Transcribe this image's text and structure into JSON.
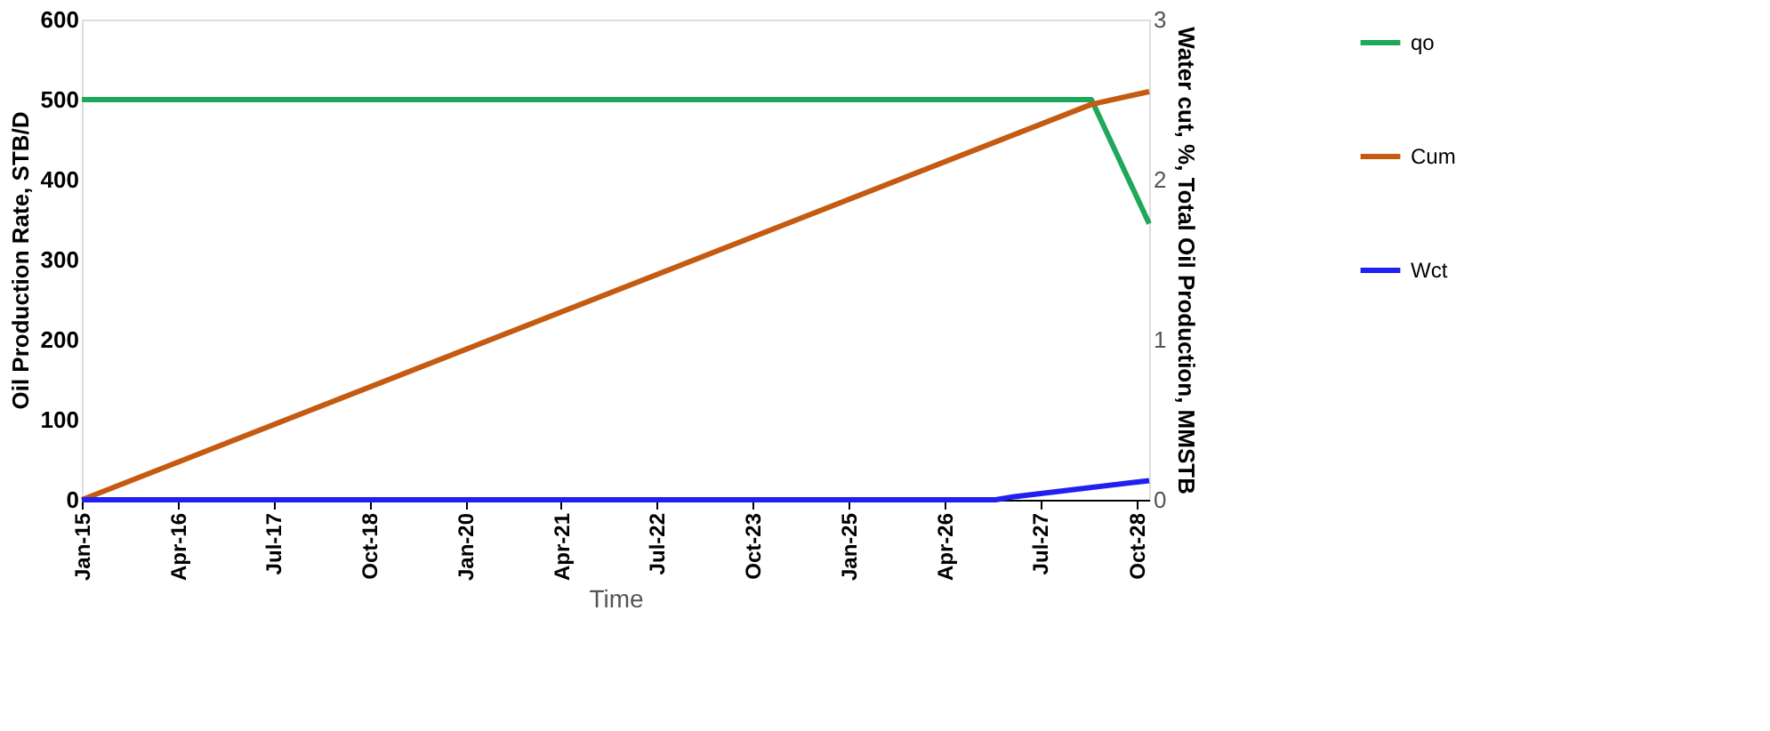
{
  "chart_data": {
    "type": "line",
    "xlabel": "Time",
    "ylabel": "Oil Production Rate, STB/D",
    "y2label": "Water cut, %, Total Oil Production, MMSTB",
    "xlim": [
      "2015-01",
      "2028-12"
    ],
    "xticks": [
      {
        "value": "2015-01",
        "label": "Jan-15"
      },
      {
        "value": "2016-04",
        "label": "Apr-16"
      },
      {
        "value": "2017-07",
        "label": "Jul-17"
      },
      {
        "value": "2018-10",
        "label": "Oct-18"
      },
      {
        "value": "2020-01",
        "label": "Jan-20"
      },
      {
        "value": "2021-04",
        "label": "Apr-21"
      },
      {
        "value": "2022-07",
        "label": "Jul-22"
      },
      {
        "value": "2023-10",
        "label": "Oct-23"
      },
      {
        "value": "2025-01",
        "label": "Jan-25"
      },
      {
        "value": "2026-04",
        "label": "Apr-26"
      },
      {
        "value": "2027-07",
        "label": "Jul-27"
      },
      {
        "value": "2028-10",
        "label": "Oct-28"
      }
    ],
    "ylim": [
      0,
      600
    ],
    "yticks": [
      0,
      100,
      200,
      300,
      400,
      500,
      600
    ],
    "y2lim": [
      0,
      3
    ],
    "y2ticks": [
      0,
      1,
      2,
      3
    ],
    "grid": false,
    "legend": "right",
    "marker": "none",
    "line_style": "solid",
    "series": [
      {
        "name": "qo",
        "color": "#1ea85a",
        "x": [
          "2015-01",
          "2028-03",
          "2028-12"
        ],
        "values": [
          500,
          500,
          345
        ]
      },
      {
        "name": "Cum",
        "color": "#c55a11",
        "axis": "y2",
        "x": [
          "2015-01",
          "2028-03",
          "2028-12"
        ],
        "values": [
          0,
          2.47,
          2.55
        ]
      },
      {
        "name": "Wct",
        "color": "#2020f0",
        "axis": "y2",
        "x": [
          "2015-01",
          "2026-12",
          "2027-03",
          "2028-12"
        ],
        "values": [
          0,
          0,
          0.02,
          0.12
        ]
      }
    ]
  }
}
